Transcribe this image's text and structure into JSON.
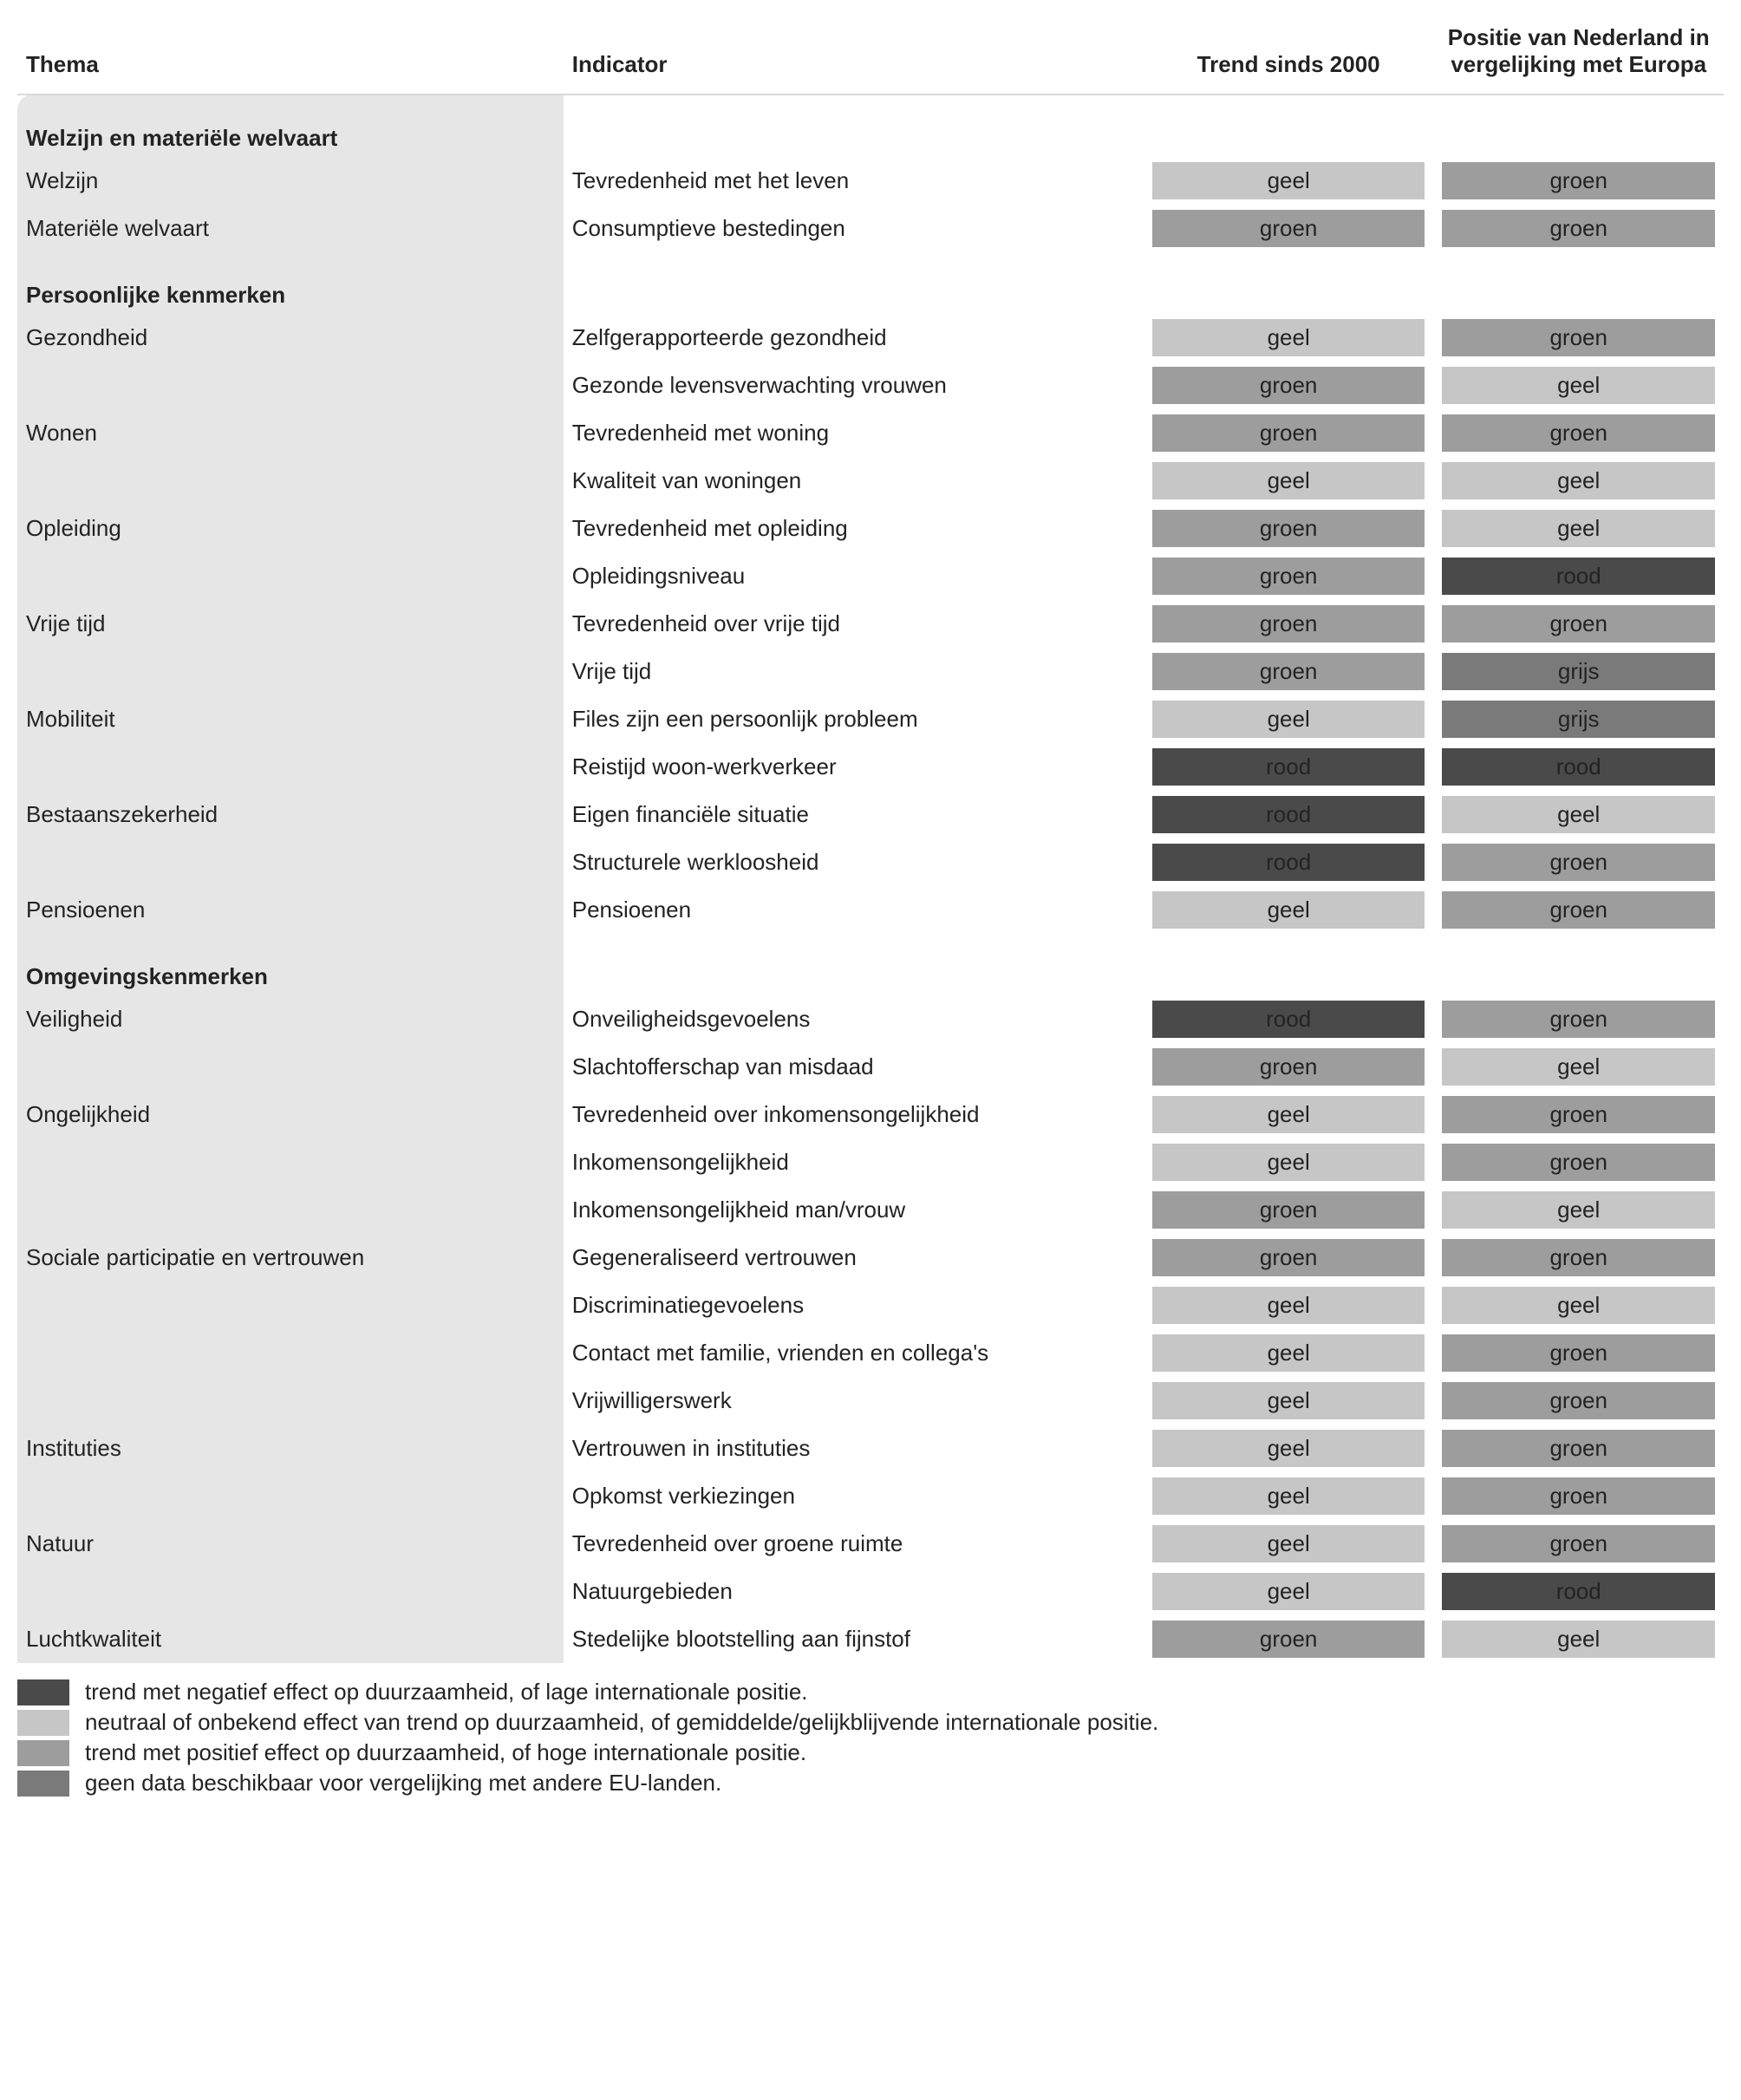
{
  "headers": {
    "thema": "Thema",
    "indicator": "Indicator",
    "trend": "Trend sinds 2000",
    "eu": "Positie van Nederland in vergelijking met Europa"
  },
  "colors": {
    "rood": "#4a4a4a",
    "geel": "#c6c6c6",
    "groen": "#9d9d9d",
    "grijs": "#7a7a7a",
    "thema_bg": "#e6e6e6",
    "header_border": "#d9d9d9"
  },
  "sections": [
    {
      "title": "Welzijn en materiële welvaart",
      "rows": [
        {
          "thema": "Welzijn",
          "indicator": "Tevredenheid met het leven",
          "trend": "geel",
          "eu": "groen"
        },
        {
          "thema": "Materiële welvaart",
          "indicator": "Consumptieve bestedingen",
          "trend": "groen",
          "eu": "groen"
        }
      ]
    },
    {
      "title": "Persoonlijke kenmerken",
      "rows": [
        {
          "thema": "Gezondheid",
          "indicator": "Zelfgerapporteerde gezondheid",
          "trend": "geel",
          "eu": "groen"
        },
        {
          "thema": "",
          "indicator": "Gezonde levensverwachting vrouwen",
          "trend": "groen",
          "eu": "geel"
        },
        {
          "thema": "Wonen",
          "indicator": "Tevredenheid met woning",
          "trend": "groen",
          "eu": "groen"
        },
        {
          "thema": "",
          "indicator": "Kwaliteit van woningen",
          "trend": "geel",
          "eu": "geel"
        },
        {
          "thema": "Opleiding",
          "indicator": "Tevredenheid met opleiding",
          "trend": "groen",
          "eu": "geel"
        },
        {
          "thema": "",
          "indicator": "Opleidingsniveau",
          "trend": "groen",
          "eu": "rood"
        },
        {
          "thema": "Vrije tijd",
          "indicator": "Tevredenheid over vrije tijd",
          "trend": "groen",
          "eu": "groen"
        },
        {
          "thema": "",
          "indicator": "Vrije tijd",
          "trend": "groen",
          "eu": "grijs"
        },
        {
          "thema": "Mobiliteit",
          "indicator": "Files zijn een persoonlijk probleem",
          "trend": "geel",
          "eu": "grijs"
        },
        {
          "thema": "",
          "indicator": "Reistijd woon-werkverkeer",
          "trend": "rood",
          "eu": "rood"
        },
        {
          "thema": "Bestaanszekerheid",
          "indicator": "Eigen financiële situatie",
          "trend": "rood",
          "eu": "geel"
        },
        {
          "thema": "",
          "indicator": "Structurele werkloosheid",
          "trend": "rood",
          "eu": "groen"
        },
        {
          "thema": "Pensioenen",
          "indicator": "Pensioenen",
          "trend": "geel",
          "eu": "groen"
        }
      ]
    },
    {
      "title": "Omgevingskenmerken",
      "rows": [
        {
          "thema": "Veiligheid",
          "indicator": "Onveiligheidsgevoelens",
          "trend": "rood",
          "eu": "groen"
        },
        {
          "thema": "",
          "indicator": "Slachtofferschap van misdaad",
          "trend": "groen",
          "eu": "geel"
        },
        {
          "thema": "Ongelijkheid",
          "indicator": "Tevredenheid over inkomensongelijkheid",
          "trend": "geel",
          "eu": "groen"
        },
        {
          "thema": "",
          "indicator": "Inkomensongelijkheid",
          "trend": "geel",
          "eu": "groen"
        },
        {
          "thema": "",
          "indicator": "Inkomensongelijkheid man/vrouw",
          "trend": "groen",
          "eu": "geel"
        },
        {
          "thema": "Sociale participatie en vertrouwen",
          "indicator": "Gegeneraliseerd vertrouwen",
          "trend": "groen",
          "eu": "groen"
        },
        {
          "thema": "",
          "indicator": "Discriminatiegevoelens",
          "trend": "geel",
          "eu": "geel"
        },
        {
          "thema": "",
          "indicator": "Contact met familie, vrienden en collega's",
          "trend": "geel",
          "eu": "groen"
        },
        {
          "thema": "",
          "indicator": "Vrijwilligerswerk",
          "trend": "geel",
          "eu": "groen"
        },
        {
          "thema": "Instituties",
          "indicator": "Vertrouwen in instituties",
          "trend": "geel",
          "eu": "groen"
        },
        {
          "thema": "",
          "indicator": "Opkomst verkiezingen",
          "trend": "geel",
          "eu": "groen"
        },
        {
          "thema": "Natuur",
          "indicator": "Tevredenheid over groene ruimte",
          "trend": "geel",
          "eu": "groen"
        },
        {
          "thema": "",
          "indicator": "Natuurgebieden",
          "trend": "geel",
          "eu": "rood"
        },
        {
          "thema": "Luchtkwaliteit",
          "indicator": "Stedelijke blootstelling aan fijnstof",
          "trend": "groen",
          "eu": "geel"
        }
      ]
    }
  ],
  "legend": [
    {
      "color": "rood",
      "text": "trend met negatief effect op duurzaamheid, of lage internationale positie."
    },
    {
      "color": "geel",
      "text": "neutraal of onbekend effect van trend op duurzaamheid, of gemiddelde/gelijkblijvende internationale positie."
    },
    {
      "color": "groen",
      "text": "trend met positief effect op duurzaamheid, of hoge internationale positie."
    },
    {
      "color": "grijs",
      "text": "geen data beschikbaar voor vergelijking met andere EU-landen."
    }
  ]
}
